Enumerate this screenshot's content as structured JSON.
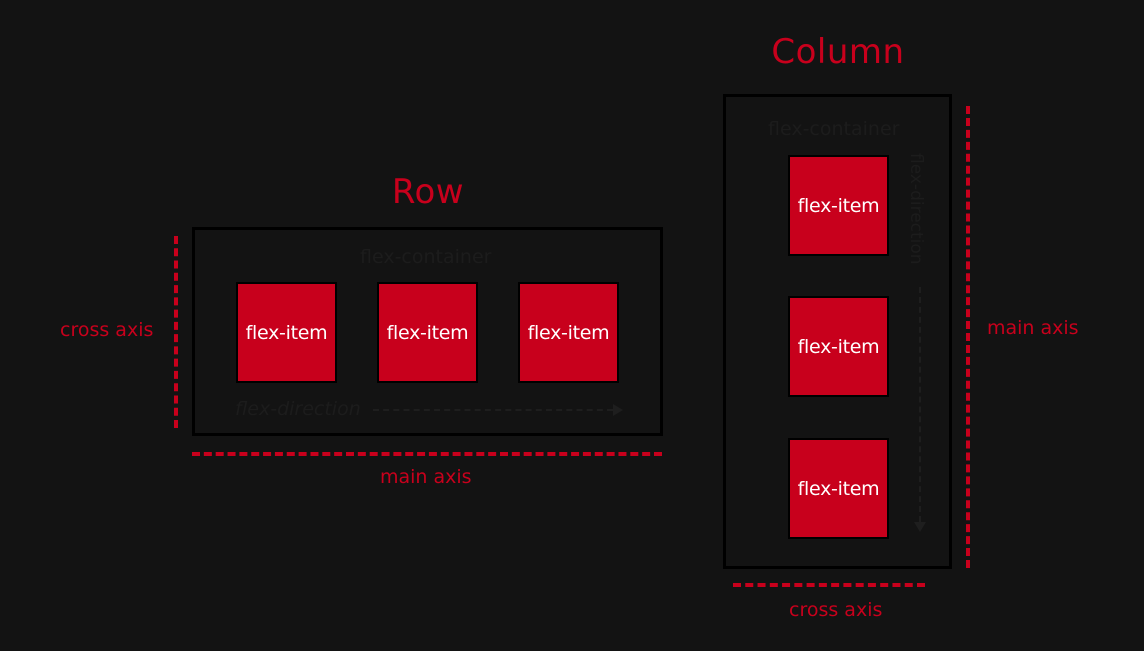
{
  "row": {
    "title": "Row",
    "container_label": "flex-container",
    "items": [
      "flex-item",
      "flex-item",
      "flex-item"
    ],
    "direction_label": "flex-direction",
    "cross_axis_label": "cross axis",
    "main_axis_label": "main axis"
  },
  "column": {
    "title": "Column",
    "container_label": "flex-container",
    "items": [
      "flex-item",
      "flex-item",
      "flex-item"
    ],
    "direction_label": "flex-direction",
    "cross_axis_label": "cross axis",
    "main_axis_label": "main axis"
  },
  "colors": {
    "accent": "#c8001c",
    "background": "#131313",
    "border": "#000000"
  }
}
